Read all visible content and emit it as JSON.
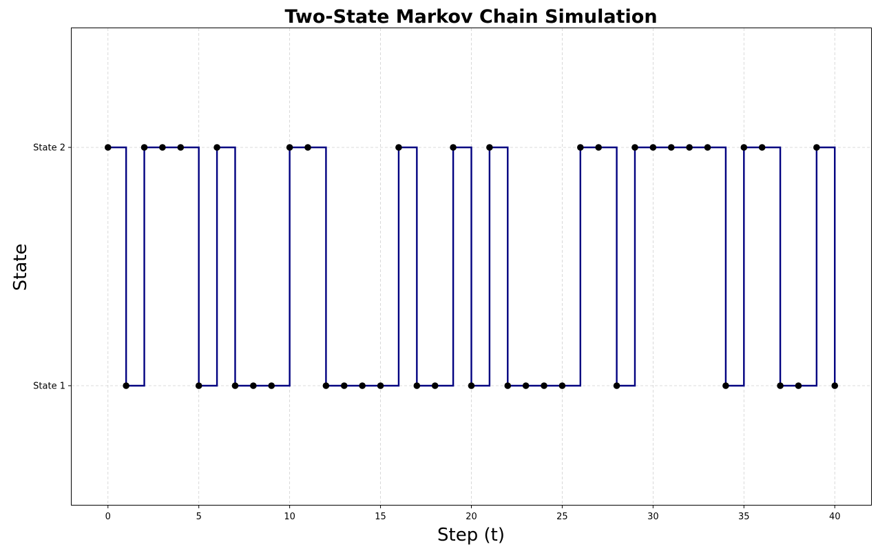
{
  "chart_data": {
    "type": "line",
    "title": "Two-State Markov Chain Simulation",
    "xlabel": "Step (t)",
    "ylabel": "State",
    "x_ticks": [
      0,
      5,
      10,
      15,
      20,
      25,
      30,
      35,
      40
    ],
    "x_tick_labels": [
      "0",
      "5",
      "10",
      "15",
      "20",
      "25",
      "30",
      "35",
      "40"
    ],
    "y_ticks": [
      1,
      2
    ],
    "y_tick_labels": [
      "State 1",
      "State 2"
    ],
    "xlim": [
      -2,
      42
    ],
    "ylim": [
      0.5,
      2.5
    ],
    "grid": true,
    "step_style": "post",
    "line_color": "#000080",
    "marker_color": "#000000",
    "x": [
      0,
      1,
      2,
      3,
      4,
      5,
      6,
      7,
      8,
      9,
      10,
      11,
      12,
      13,
      14,
      15,
      16,
      17,
      18,
      19,
      20,
      21,
      22,
      23,
      24,
      25,
      26,
      27,
      28,
      29,
      30,
      31,
      32,
      33,
      34,
      35,
      36,
      37,
      38,
      39,
      40
    ],
    "y": [
      2,
      1,
      2,
      2,
      2,
      1,
      2,
      1,
      1,
      1,
      2,
      2,
      1,
      1,
      1,
      1,
      2,
      1,
      1,
      2,
      1,
      2,
      1,
      1,
      1,
      1,
      2,
      2,
      1,
      2,
      2,
      2,
      2,
      2,
      1,
      2,
      2,
      1,
      1,
      2,
      1
    ]
  }
}
